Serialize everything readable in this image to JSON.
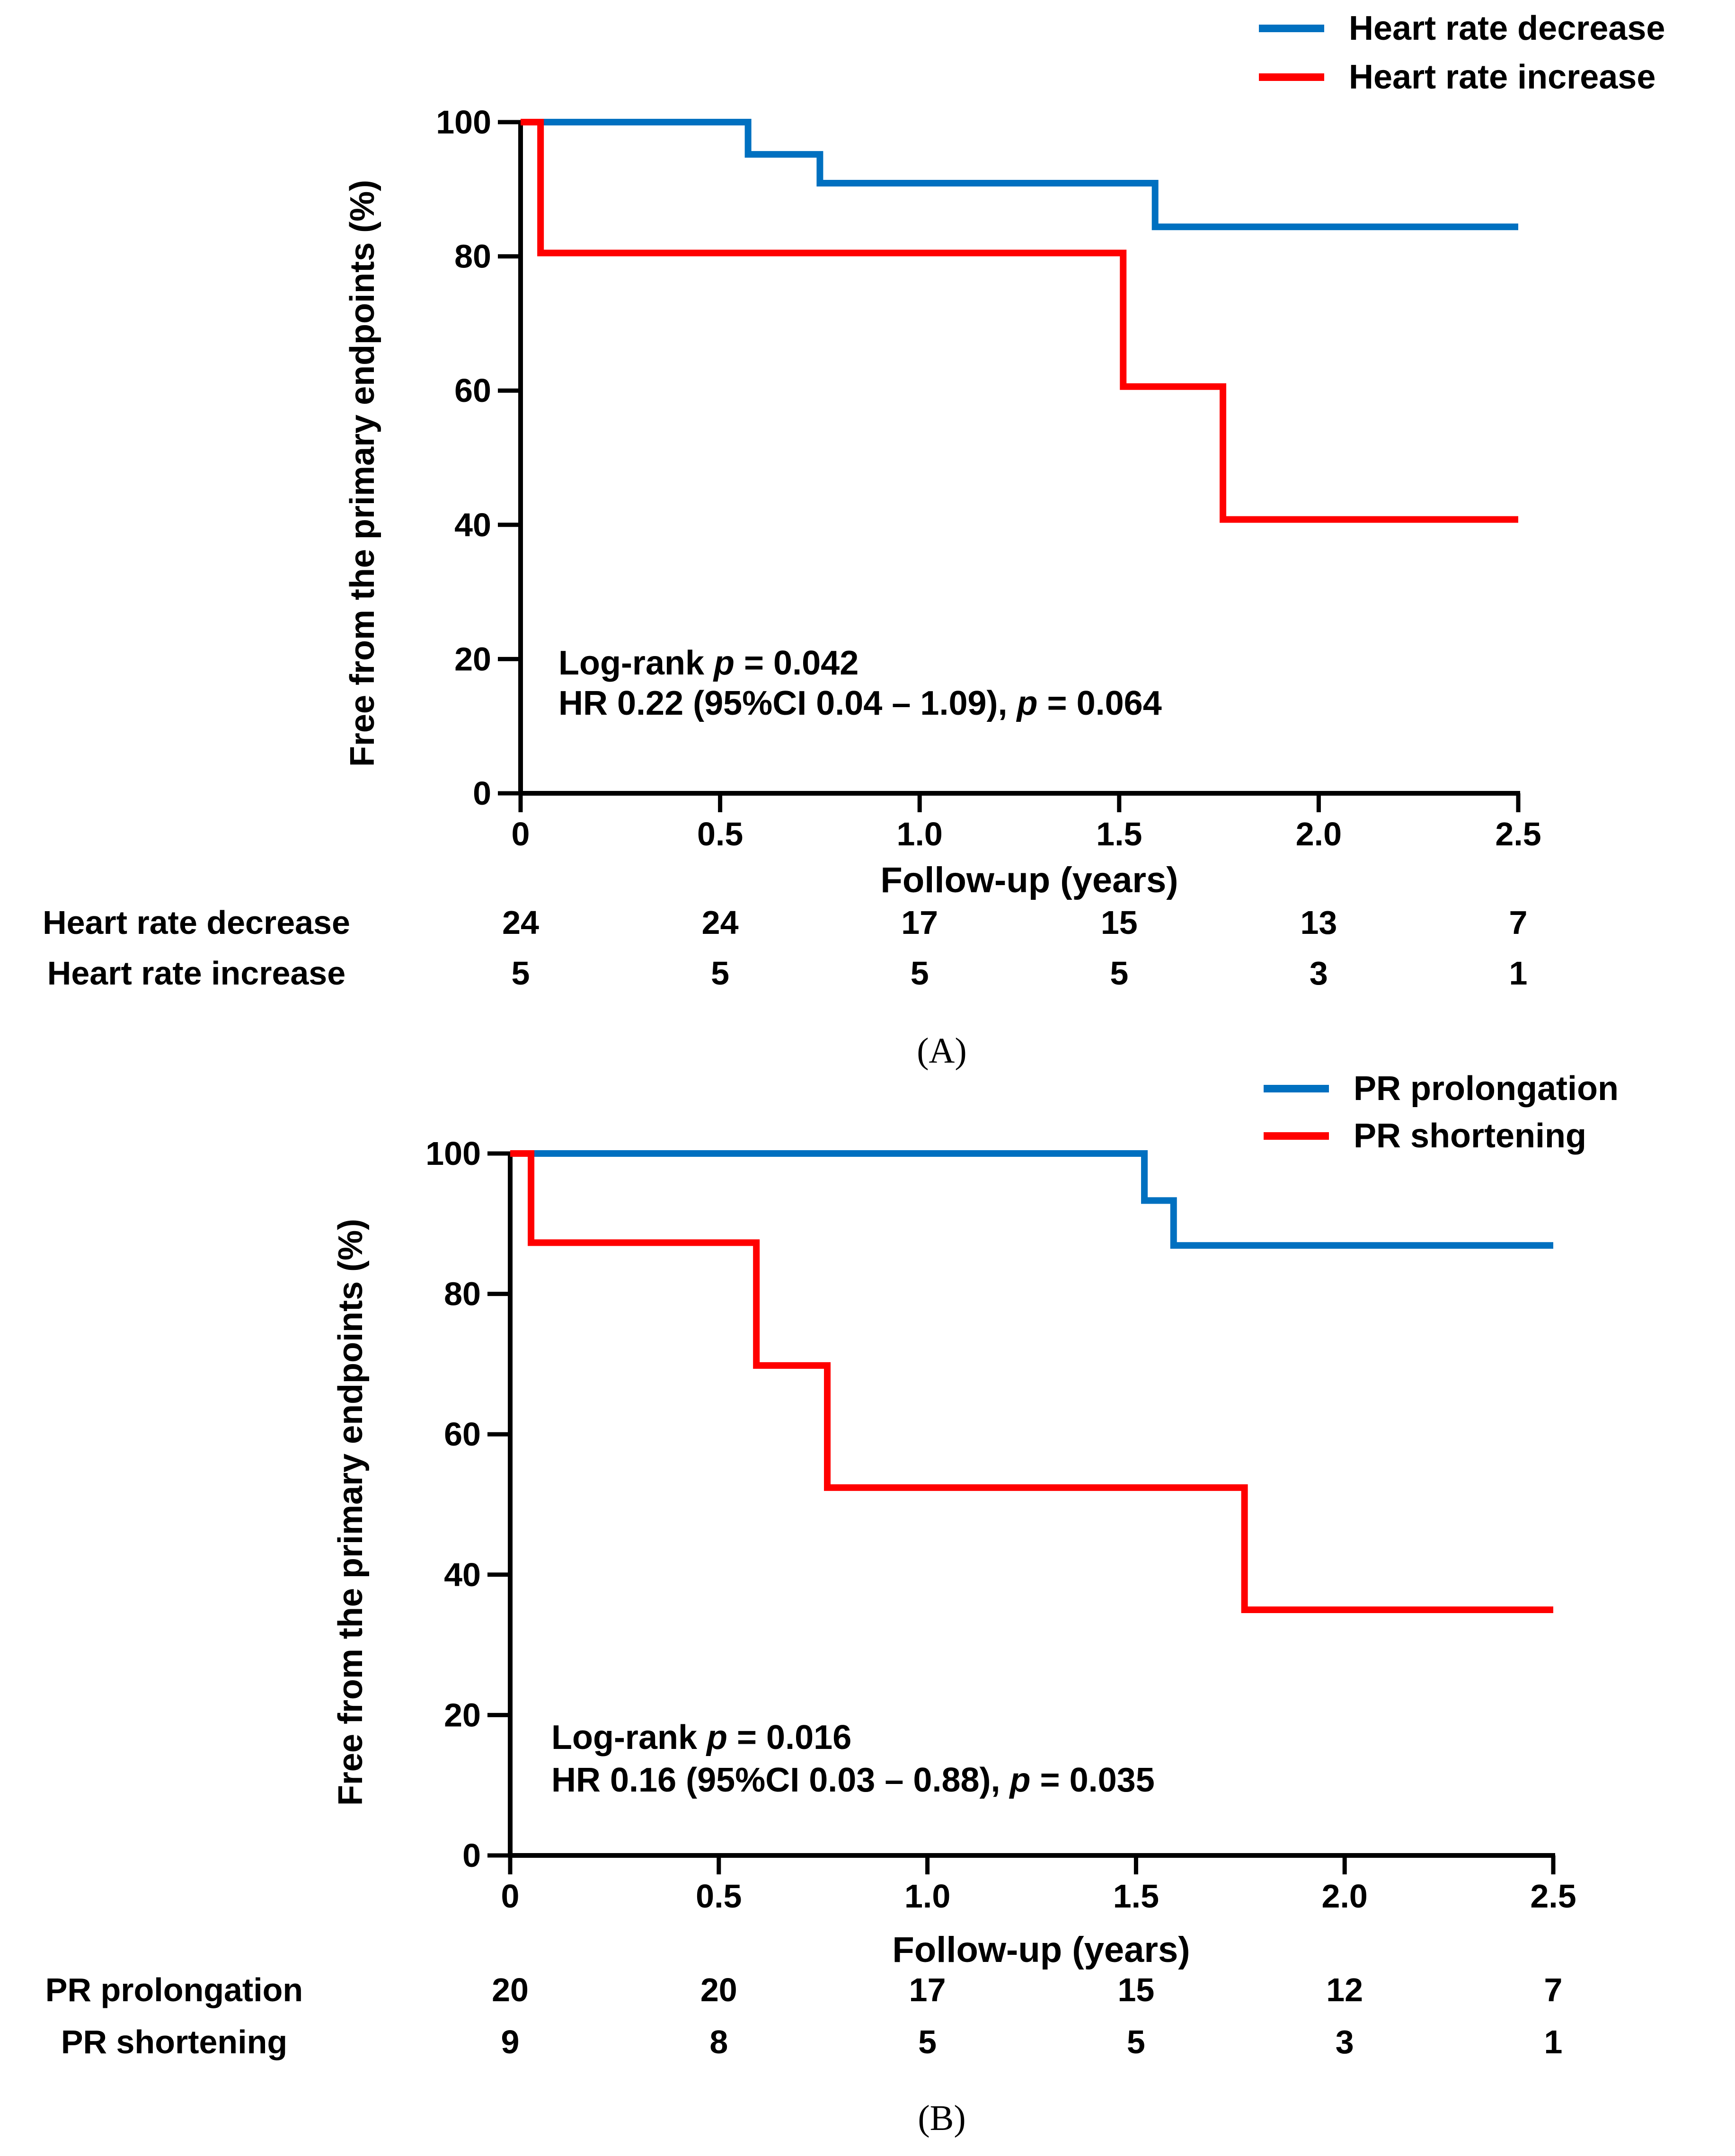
{
  "chart_data": [
    {
      "type": "line",
      "panel_label": "(A)",
      "ylabel": "Free from the primary endpoints (%)",
      "xlabel": "Follow-up (years)",
      "ylim": [
        0,
        100
      ],
      "xlim": [
        0,
        2.5
      ],
      "yticks": [
        "0",
        "20",
        "40",
        "60",
        "80",
        "100"
      ],
      "xticks": [
        "0",
        "0.5",
        "1.0",
        "1.5",
        "2.0",
        "2.5"
      ],
      "legend_position": "top-right",
      "series": [
        {
          "name": "Heart rate decrease",
          "color": "#0070C0",
          "x": [
            0,
            0.57,
            0.57,
            0.75,
            0.75,
            1.59,
            1.59,
            2.5
          ],
          "y": [
            100,
            100,
            95.2,
            95.2,
            90.9,
            90.9,
            84.4,
            84.4
          ]
        },
        {
          "name": "Heart rate increase",
          "color": "#FF0000",
          "x": [
            0,
            0.05,
            0.05,
            1.51,
            1.51,
            1.76,
            1.76,
            2.5
          ],
          "y": [
            100,
            100,
            80.5,
            80.5,
            60.6,
            60.6,
            40.8,
            40.8
          ]
        }
      ],
      "annotation": {
        "line1_prefix": "Log-rank ",
        "line1_p": "p",
        "line1_suffix": " = 0.042",
        "line2_prefix": "HR 0.22 (95%CI 0.04 – 1.09), ",
        "line2_p": "p",
        "line2_suffix": " = 0.064"
      },
      "risk_table": {
        "rows": [
          {
            "label": "Heart rate decrease",
            "values": [
              "24",
              "24",
              "17",
              "15",
              "13",
              "7"
            ]
          },
          {
            "label": "Heart rate increase",
            "values": [
              "5",
              "5",
              "5",
              "5",
              "3",
              "1"
            ]
          }
        ]
      }
    },
    {
      "type": "line",
      "panel_label": "(B)",
      "ylabel": "Free from the primary endpoints (%)",
      "xlabel": "Follow-up (years)",
      "ylim": [
        0,
        100
      ],
      "xlim": [
        0,
        2.5
      ],
      "yticks": [
        "0",
        "20",
        "40",
        "60",
        "80",
        "100"
      ],
      "xticks": [
        "0",
        "0.5",
        "1.0",
        "1.5",
        "2.0",
        "2.5"
      ],
      "legend_position": "top-right",
      "series": [
        {
          "name": "PR prolongation",
          "color": "#0070C0",
          "x": [
            0,
            1.52,
            1.52,
            1.59,
            1.59,
            2.5
          ],
          "y": [
            100,
            100,
            93.3,
            93.3,
            86.9,
            86.9
          ]
        },
        {
          "name": "PR shortening",
          "color": "#FF0000",
          "x": [
            0,
            0.05,
            0.05,
            0.59,
            0.59,
            0.76,
            0.76,
            1.76,
            1.76,
            2.5
          ],
          "y": [
            100,
            100,
            87.3,
            87.3,
            69.8,
            69.8,
            52.4,
            52.4,
            35.0,
            35.0
          ]
        }
      ],
      "annotation": {
        "line1_prefix": "Log-rank ",
        "line1_p": "p",
        "line1_suffix": " = 0.016",
        "line2_prefix": "HR 0.16 (95%CI 0.03 – 0.88), ",
        "line2_p": "p",
        "line2_suffix": " = 0.035"
      },
      "risk_table": {
        "rows": [
          {
            "label": "PR prolongation",
            "values": [
              "20",
              "20",
              "17",
              "15",
              "12",
              "7"
            ]
          },
          {
            "label": "PR shortening",
            "values": [
              "9",
              "8",
              "5",
              "5",
              "3",
              "1"
            ]
          }
        ]
      }
    }
  ]
}
